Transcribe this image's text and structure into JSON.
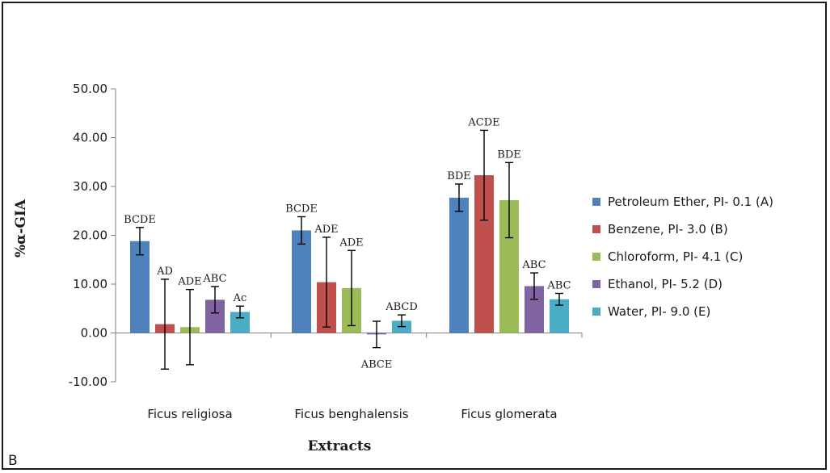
{
  "chart_data": {
    "type": "bar",
    "panel_label": "B",
    "xlabel": "Extracts",
    "ylabel": "%α-GIA",
    "ylim": [
      -10,
      50
    ],
    "yticks": [
      "-10.00",
      "0.00",
      "10.00",
      "20.00",
      "30.00",
      "40.00",
      "50.00"
    ],
    "grid": false,
    "legend_position": "right",
    "categories": [
      "Ficus religiosa",
      "Ficus benghalensis",
      "Ficus glomerata"
    ],
    "series": [
      {
        "name": "Petroleum Ether, PI- 0.1 (A)",
        "color": "#4f81bd",
        "values": [
          18.8,
          21.0,
          27.7
        ],
        "err": [
          2.8,
          2.8,
          2.8
        ],
        "labels": [
          "BCDE",
          "BCDE",
          "BDE"
        ]
      },
      {
        "name": "Benzene, PI- 3.0 (B)",
        "color": "#c0504d",
        "values": [
          1.8,
          10.4,
          32.3
        ],
        "err": [
          9.2,
          9.2,
          9.2
        ],
        "labels": [
          "AD",
          "ADE",
          "ACDE"
        ]
      },
      {
        "name": "Chloroform, PI- 4.1 (C)",
        "color": "#9bbb59",
        "values": [
          1.2,
          9.2,
          27.2
        ],
        "err": [
          7.7,
          7.7,
          7.7
        ],
        "labels": [
          "ADE",
          "ADE",
          "BDE"
        ]
      },
      {
        "name": "Ethanol, PI- 5.2 (D)",
        "color": "#8064a2",
        "values": [
          6.8,
          -0.3,
          9.6
        ],
        "err": [
          2.7,
          2.7,
          2.7
        ],
        "labels": [
          "ABC",
          "ABCE",
          "ABC"
        ]
      },
      {
        "name": "Water, PI- 9.0 (E)",
        "color": "#4bacc6",
        "values": [
          4.3,
          2.5,
          6.9
        ],
        "err": [
          1.2,
          1.2,
          1.2
        ],
        "labels": [
          "Ac",
          "ABCD",
          "ABC"
        ]
      }
    ]
  }
}
